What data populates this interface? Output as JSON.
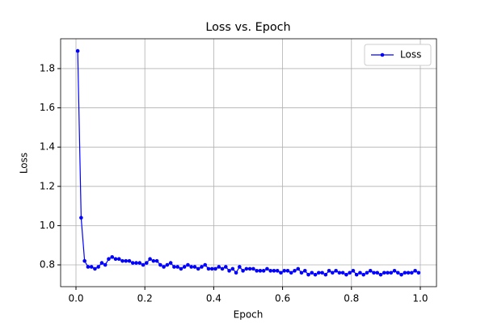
{
  "chart_data": {
    "type": "line",
    "title": "Loss vs. Epoch",
    "x_label": "Epoch",
    "y_label": "Loss",
    "x": [
      0.005,
      0.015,
      0.025,
      0.035,
      0.045,
      0.055,
      0.065,
      0.075,
      0.085,
      0.095,
      0.105,
      0.115,
      0.125,
      0.135,
      0.145,
      0.155,
      0.165,
      0.175,
      0.185,
      0.195,
      0.205,
      0.215,
      0.225,
      0.235,
      0.245,
      0.255,
      0.265,
      0.275,
      0.285,
      0.295,
      0.305,
      0.315,
      0.325,
      0.335,
      0.345,
      0.355,
      0.365,
      0.375,
      0.385,
      0.395,
      0.405,
      0.415,
      0.425,
      0.435,
      0.445,
      0.455,
      0.465,
      0.475,
      0.485,
      0.495,
      0.505,
      0.515,
      0.525,
      0.535,
      0.545,
      0.555,
      0.565,
      0.575,
      0.585,
      0.595,
      0.605,
      0.615,
      0.625,
      0.635,
      0.645,
      0.655,
      0.665,
      0.675,
      0.685,
      0.695,
      0.705,
      0.715,
      0.725,
      0.735,
      0.745,
      0.755,
      0.765,
      0.775,
      0.785,
      0.795,
      0.805,
      0.815,
      0.825,
      0.835,
      0.845,
      0.855,
      0.865,
      0.875,
      0.885,
      0.895,
      0.905,
      0.915,
      0.925,
      0.935,
      0.945,
      0.955,
      0.965,
      0.975,
      0.985,
      0.995
    ],
    "series": [
      {
        "name": "Loss",
        "color": "#0000ff",
        "values": [
          1.89,
          1.04,
          0.82,
          0.79,
          0.79,
          0.78,
          0.79,
          0.81,
          0.8,
          0.83,
          0.84,
          0.83,
          0.83,
          0.82,
          0.82,
          0.82,
          0.81,
          0.81,
          0.81,
          0.8,
          0.81,
          0.83,
          0.82,
          0.82,
          0.8,
          0.79,
          0.8,
          0.81,
          0.79,
          0.79,
          0.78,
          0.79,
          0.8,
          0.79,
          0.79,
          0.78,
          0.79,
          0.8,
          0.78,
          0.78,
          0.78,
          0.79,
          0.78,
          0.79,
          0.77,
          0.78,
          0.76,
          0.79,
          0.77,
          0.78,
          0.78,
          0.78,
          0.77,
          0.77,
          0.77,
          0.78,
          0.77,
          0.77,
          0.77,
          0.76,
          0.77,
          0.77,
          0.76,
          0.77,
          0.78,
          0.76,
          0.77,
          0.75,
          0.76,
          0.75,
          0.76,
          0.76,
          0.75,
          0.77,
          0.76,
          0.77,
          0.76,
          0.76,
          0.75,
          0.76,
          0.77,
          0.75,
          0.76,
          0.75,
          0.76,
          0.77,
          0.76,
          0.76,
          0.75,
          0.76,
          0.76,
          0.76,
          0.77,
          0.76,
          0.75,
          0.76,
          0.76,
          0.76,
          0.77,
          0.76
        ]
      }
    ],
    "xlim": [
      -0.0446,
      1.047
    ],
    "ylim": [
      0.689,
      1.952
    ],
    "xticks": [
      {
        "value": 0,
        "label": "0.0"
      },
      {
        "value": 0.2,
        "label": "0.2"
      },
      {
        "value": 0.4,
        "label": "0.4"
      },
      {
        "value": 0.6,
        "label": "0.6"
      },
      {
        "value": 0.8,
        "label": "0.8"
      },
      {
        "value": 1,
        "label": "1.0"
      }
    ],
    "yticks": [
      {
        "value": 0.8,
        "label": "0.8"
      },
      {
        "value": 1,
        "label": "1.0"
      },
      {
        "value": 1.2,
        "label": "1.2"
      },
      {
        "value": 1.4,
        "label": "1.4"
      },
      {
        "value": 1.6,
        "label": "1.6"
      },
      {
        "value": 1.8,
        "label": "1.8"
      }
    ],
    "grid": true,
    "legend": "upper right"
  }
}
